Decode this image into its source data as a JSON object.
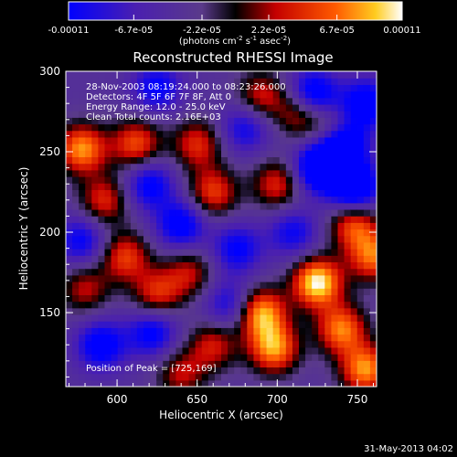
{
  "chart_data": {
    "type": "heatmap",
    "title": "Reconstructed RHESSI Image",
    "xlabel": "Heliocentric X (arcsec)",
    "ylabel": "Heliocentric Y (arcsec)",
    "xlim": [
      568,
      762
    ],
    "ylim": [
      104,
      300
    ],
    "x_ticks": [
      600,
      650,
      700,
      750
    ],
    "y_ticks": [
      150,
      200,
      250,
      300
    ],
    "colorbar": {
      "min": -0.00011,
      "max": 0.00011,
      "tick_values": [
        -0.00011,
        -6.7e-05,
        -2.2e-05,
        2.2e-05,
        6.7e-05,
        0.00011
      ],
      "tick_labels": [
        "-0.00011",
        "-6.7e-05",
        "-2.2e-05",
        "2.2e-05",
        "6.7e-05",
        "0.00011"
      ],
      "units_text": "(photons cm",
      "units_exp1": "-2",
      "units_mid": " s",
      "units_exp2": "-1",
      "units_end": " asec",
      "units_exp3": "-2",
      "units_close": ")"
    },
    "annotations": {
      "time_range": "28-Nov-2003 08:19:24.000 to 08:23:26.000",
      "detectors": "Detectors: 4F 5F 6F 7F 8F, Att 0",
      "energy": "Energy Range: 12.0 - 25.0 keV",
      "clean": "Clean    Total counts: 2.16E+03",
      "peak": "Position of Peak = [725,169]"
    },
    "features": [
      {
        "x": 725,
        "y": 169,
        "v": 1.0
      },
      {
        "x": 690,
        "y": 150,
        "v": 0.85
      },
      {
        "x": 698,
        "y": 128,
        "v": 0.8
      },
      {
        "x": 740,
        "y": 140,
        "v": 0.75
      },
      {
        "x": 755,
        "y": 115,
        "v": 0.8
      },
      {
        "x": 760,
        "y": 185,
        "v": 0.7
      },
      {
        "x": 748,
        "y": 205,
        "v": 0.65
      },
      {
        "x": 578,
        "y": 252,
        "v": 0.8
      },
      {
        "x": 612,
        "y": 255,
        "v": 0.65
      },
      {
        "x": 592,
        "y": 220,
        "v": 0.55
      },
      {
        "x": 605,
        "y": 185,
        "v": 0.6
      },
      {
        "x": 625,
        "y": 162,
        "v": 0.55
      },
      {
        "x": 645,
        "y": 175,
        "v": 0.45
      },
      {
        "x": 660,
        "y": 225,
        "v": 0.6
      },
      {
        "x": 650,
        "y": 255,
        "v": 0.55
      },
      {
        "x": 700,
        "y": 230,
        "v": 0.55
      },
      {
        "x": 715,
        "y": 275,
        "v": 0.6
      },
      {
        "x": 690,
        "y": 285,
        "v": 0.5
      },
      {
        "x": 735,
        "y": 262,
        "v": 0.5
      },
      {
        "x": 580,
        "y": 165,
        "v": 0.45
      },
      {
        "x": 660,
        "y": 130,
        "v": 0.5
      },
      {
        "x": 640,
        "y": 112,
        "v": 0.45
      },
      {
        "x": 590,
        "y": 130,
        "v": -0.6
      },
      {
        "x": 622,
        "y": 138,
        "v": -0.55
      },
      {
        "x": 578,
        "y": 195,
        "v": -0.5
      },
      {
        "x": 640,
        "y": 205,
        "v": -0.6
      },
      {
        "x": 620,
        "y": 230,
        "v": -0.55
      },
      {
        "x": 625,
        "y": 290,
        "v": -0.5
      },
      {
        "x": 675,
        "y": 190,
        "v": -0.5
      },
      {
        "x": 670,
        "y": 155,
        "v": -0.45
      },
      {
        "x": 740,
        "y": 255,
        "v": -1.0
      },
      {
        "x": 748,
        "y": 228,
        "v": -0.85
      },
      {
        "x": 725,
        "y": 240,
        "v": -0.75
      },
      {
        "x": 722,
        "y": 285,
        "v": -0.8
      },
      {
        "x": 755,
        "y": 280,
        "v": -0.65
      },
      {
        "x": 710,
        "y": 200,
        "v": -0.45
      },
      {
        "x": 680,
        "y": 265,
        "v": -0.45
      }
    ]
  },
  "footer": {
    "timestamp": "31-May-2013 04:02"
  }
}
